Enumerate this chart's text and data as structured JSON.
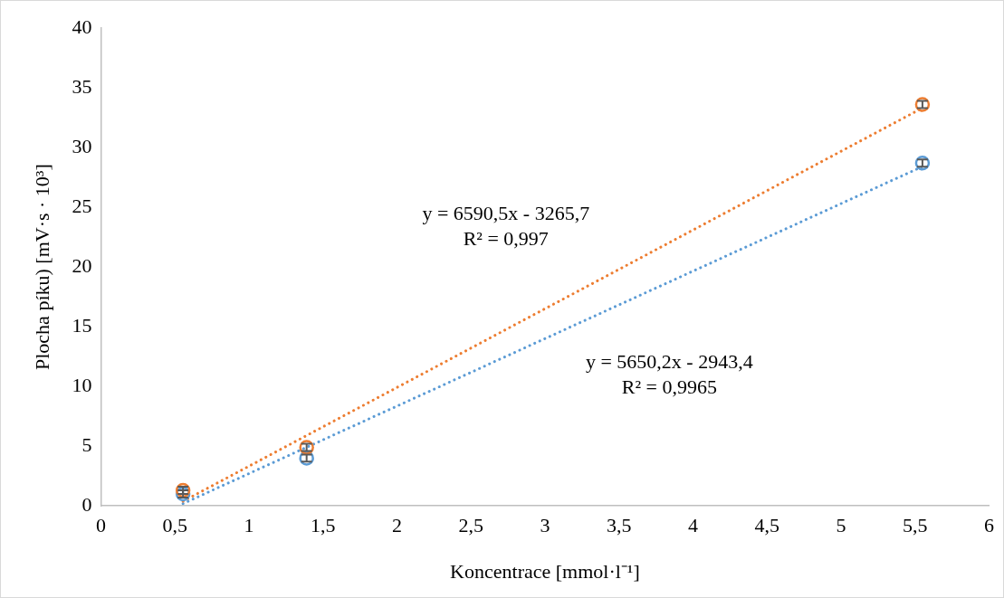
{
  "chart_data": {
    "type": "scatter",
    "xlabel": "Koncentrace [mmol·l⁻¹]",
    "ylabel": "Plocha píku) [mV·s · 10³]",
    "xlim": [
      0,
      6
    ],
    "xticks": [
      0,
      {
        "value": 0.5,
        "label": "0,5"
      },
      1,
      {
        "value": 1.5,
        "label": "1,5"
      },
      2,
      {
        "value": 2.5,
        "label": "2,5"
      },
      3,
      {
        "value": 3.5,
        "label": "3,5"
      },
      4,
      {
        "value": 4.5,
        "label": "4,5"
      },
      5,
      {
        "value": 5.5,
        "label": "5,5"
      },
      6
    ],
    "ylim": [
      0,
      40
    ],
    "yticks": [
      0,
      5,
      10,
      15,
      20,
      25,
      30,
      35,
      40
    ],
    "grid": false,
    "legend": false,
    "marker": "circle",
    "series": [
      {
        "type": "scatter",
        "color": "#ed7d31",
        "x": [
          0.555,
          1.39,
          5.55
        ],
        "values": [
          1.3,
          4.9,
          33.6
        ],
        "errors": [
          0.3,
          0.3,
          0.3
        ]
      },
      {
        "type": "scatter",
        "color": "#5b9bd5",
        "x": [
          0.555,
          1.39,
          5.55
        ],
        "values": [
          1.0,
          4.0,
          28.7
        ],
        "errors": [
          0.3,
          0.3,
          0.3
        ]
      },
      {
        "type": "line",
        "color": "#ed7d31",
        "x": [
          0.555,
          5.55
        ],
        "values": [
          0.39,
          33.31
        ],
        "marker": "none",
        "line_style": "dotted"
      },
      {
        "type": "line",
        "color": "#5b9bd5",
        "x": [
          0.555,
          5.55
        ],
        "values": [
          0.19,
          28.41
        ],
        "marker": "none",
        "line_style": "dotted"
      }
    ],
    "annotations": [
      "y = 6590,5x - 3265,7\nR² = 0,997",
      "y = 5650,2x - 2943,4\nR² = 0,9965"
    ]
  }
}
